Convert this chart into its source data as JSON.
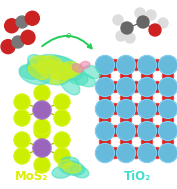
{
  "bg_color": "#ffffff",
  "mos2_label": "MoS₂",
  "tio2_label": "TiO₂",
  "mos2_color": "#ddee00",
  "tio2_color": "#44ddcc",
  "mo_color": "#9966bb",
  "s_color": "#ccee00",
  "ti_color": "#66bbdd",
  "o_color": "#dd2222",
  "co2_c_color": "#777777",
  "co2_o_color": "#cc2222",
  "ethanol_c_color": "#666666",
  "ethanol_h_color": "#dddddd",
  "arrow_color": "#22cc55",
  "electron_label": "e",
  "iso_cyan": "#44ddbb",
  "iso_yellow": "#ccee22",
  "iso_pink": "#ee88aa"
}
